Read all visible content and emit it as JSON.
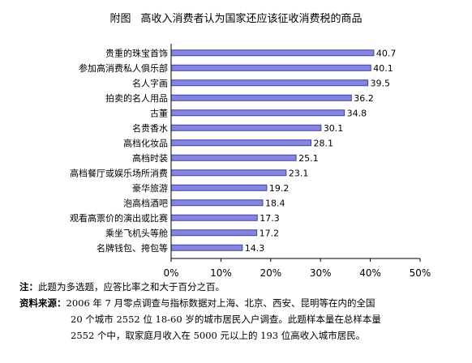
{
  "title": {
    "figure": "附图",
    "text": "高收入消费者认为国家还应该征收消费税的商品"
  },
  "chart_data": {
    "type": "bar",
    "orientation": "horizontal",
    "categories": [
      "贵重的珠宝首饰",
      "参加高消费私人俱乐部",
      "名人字画",
      "拍卖的名人用品",
      "古董",
      "名贵香水",
      "高档化妆品",
      "高档时装",
      "高档餐厅或娱乐场所消费",
      "豪华旅游",
      "泡高档酒吧",
      "观看高票价的演出或比赛",
      "乘坐飞机头等舱",
      "名牌钱包、挎包等"
    ],
    "values": [
      40.7,
      40.1,
      39.5,
      36.2,
      34.8,
      30.1,
      28.1,
      25.1,
      23.1,
      19.2,
      18.4,
      17.3,
      17.2,
      14.3
    ],
    "value_labels": [
      "40.7",
      "40.1",
      "39.5",
      "36.2",
      "34.8",
      "30.1",
      "28.1",
      "25.1",
      "23.1",
      "19.2",
      "18.4",
      "17.3",
      "17.2",
      "14.3"
    ],
    "xlim": [
      0,
      50
    ],
    "x_ticks": [
      "0%",
      "10%",
      "20%",
      "30%",
      "40%",
      "50%"
    ],
    "grid": false,
    "bar_color": "#8585e0",
    "bar_edge_color": "#3f3fa8"
  },
  "notes": {
    "note_label": "注：",
    "note_text": "此题为多选题，应答比率之和大于百分之百。",
    "source_label": "资料来源：",
    "source_lines": [
      "2006 年 7 月零点调查与指标数据对上海、北京、西安、昆明等在内的全国",
      "20 个城市 2552 位 18-60 岁的城市居民入户调查。此题样本量在总样本量",
      "2552 个中，取家庭月收入在 5000 元以上的 193 位高收入城市居民。"
    ]
  }
}
